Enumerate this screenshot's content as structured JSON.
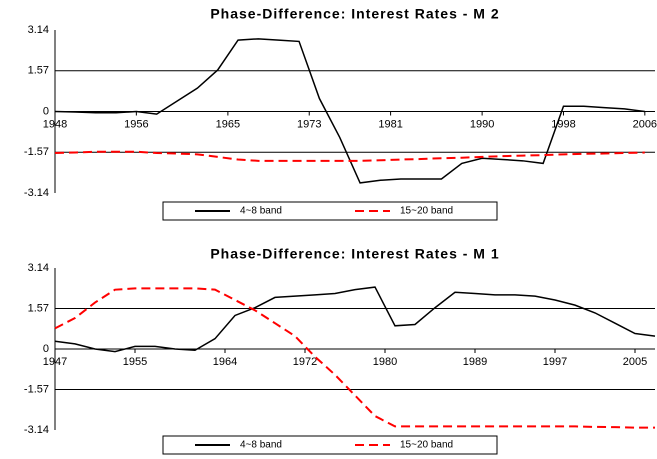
{
  "chart_data": [
    {
      "type": "line",
      "title": "Phase-Difference: Interest Rates - M 2",
      "x": [
        1948,
        1950,
        1952,
        1954,
        1956,
        1958,
        1960,
        1962,
        1964,
        1966,
        1968,
        1970,
        1972,
        1974,
        1976,
        1978,
        1980,
        1982,
        1984,
        1986,
        1988,
        1990,
        1992,
        1994,
        1996,
        1998,
        2000,
        2002,
        2004,
        2006
      ],
      "series": [
        {
          "name": "4~8 band",
          "color": "#000000",
          "dash": false,
          "values": [
            0,
            -0.02,
            -0.05,
            -0.05,
            0,
            -0.1,
            0.4,
            0.9,
            1.6,
            2.75,
            2.8,
            2.75,
            2.7,
            0.5,
            -1.0,
            -2.75,
            -2.65,
            -2.6,
            -2.6,
            -2.6,
            -2.0,
            -1.8,
            -1.85,
            -1.9,
            -2.0,
            0.2,
            0.2,
            0.15,
            0.1,
            0
          ]
        },
        {
          "name": "15~20 band",
          "color": "#ff0000",
          "dash": true,
          "values": [
            -1.6,
            -1.58,
            -1.55,
            -1.55,
            -1.55,
            -1.6,
            -1.62,
            -1.65,
            -1.75,
            -1.85,
            -1.9,
            -1.9,
            -1.9,
            -1.9,
            -1.9,
            -1.9,
            -1.88,
            -1.85,
            -1.83,
            -1.8,
            -1.78,
            -1.75,
            -1.72,
            -1.7,
            -1.68,
            -1.65,
            -1.63,
            -1.62,
            -1.6,
            -1.58
          ]
        }
      ],
      "xlim": [
        1948,
        2007
      ],
      "xticks": [
        1948,
        1956,
        1965,
        1973,
        1981,
        1990,
        1998,
        2006
      ],
      "ylim": [
        -3.14,
        3.14
      ],
      "yticks": [
        -3.14,
        -1.57,
        0,
        1.57,
        3.14
      ],
      "grid": true
    },
    {
      "type": "line",
      "title": "Phase-Difference: Interest Rates - M 1",
      "x": [
        1947,
        1949,
        1951,
        1953,
        1955,
        1957,
        1959,
        1961,
        1963,
        1965,
        1967,
        1969,
        1971,
        1973,
        1975,
        1977,
        1979,
        1981,
        1983,
        1985,
        1987,
        1989,
        1991,
        1993,
        1995,
        1997,
        1999,
        2001,
        2003,
        2005,
        2007
      ],
      "series": [
        {
          "name": "4~8 band",
          "color": "#000000",
          "dash": false,
          "values": [
            0.3,
            0.2,
            0,
            -0.1,
            0.1,
            0.1,
            0,
            -0.05,
            0.4,
            1.3,
            1.6,
            2.0,
            2.05,
            2.1,
            2.15,
            2.3,
            2.4,
            0.9,
            0.95,
            1.6,
            2.2,
            2.15,
            2.1,
            2.1,
            2.05,
            1.9,
            1.7,
            1.4,
            1.0,
            0.6,
            0.5
          ]
        },
        {
          "name": "15~20 band",
          "color": "#ff0000",
          "dash": true,
          "values": [
            0.8,
            1.2,
            1.8,
            2.3,
            2.35,
            2.35,
            2.35,
            2.35,
            2.3,
            1.9,
            1.5,
            1.0,
            0.5,
            -0.3,
            -1.0,
            -1.8,
            -2.6,
            -3.0,
            -3.0,
            -3.0,
            -3.0,
            -3.0,
            -3.0,
            -3.0,
            -3.0,
            -3.0,
            -3.0,
            -3.02,
            -3.03,
            -3.05,
            -3.05
          ]
        }
      ],
      "xlim": [
        1947,
        2007
      ],
      "xticks": [
        1947,
        1955,
        1964,
        1972,
        1980,
        1989,
        1997,
        2005
      ],
      "ylim": [
        -3.14,
        3.14
      ],
      "yticks": [
        -3.14,
        -1.57,
        0,
        1.57,
        3.14
      ],
      "grid": true
    }
  ]
}
